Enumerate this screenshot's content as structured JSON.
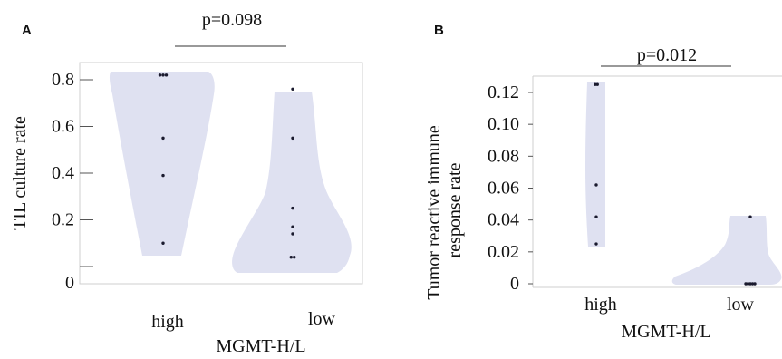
{
  "chart_data": [
    {
      "panel": "A",
      "type": "violin",
      "xlabel": "MGMT-H/L",
      "ylabel": "TIL culture rate",
      "ylim": [
        0,
        0.8
      ],
      "ytick_labels": [
        "0",
        "0.2",
        "0.4",
        "0.6",
        "0.8"
      ],
      "categories": [
        "high",
        "low"
      ],
      "points": [
        [
          0.82,
          0.82,
          0.82,
          0.55,
          0.39,
          0.1
        ],
        [
          0.76,
          0.55,
          0.25,
          0.17,
          0.14,
          0.04,
          0.04
        ]
      ],
      "annotation": "p=0.098",
      "fill_color": "#dfe1f1",
      "point_color": "#1a1a2e"
    },
    {
      "panel": "B",
      "type": "violin",
      "xlabel": "MGMT-H/L",
      "ylabel": "Tumor reactive immune response rate",
      "ylim": [
        0,
        0.12
      ],
      "ytick_labels": [
        "0",
        "0.02",
        "0.04",
        "0.06",
        "0.08",
        "0.10",
        "0.12"
      ],
      "categories": [
        "high",
        "low"
      ],
      "points": [
        [
          0.125,
          0.125,
          0.062,
          0.042,
          0.025
        ],
        [
          0.042,
          0,
          0,
          0,
          0,
          0
        ]
      ],
      "annotation": "p=0.012",
      "fill_color": "#dfe1f1",
      "point_color": "#1a1a2e"
    }
  ]
}
